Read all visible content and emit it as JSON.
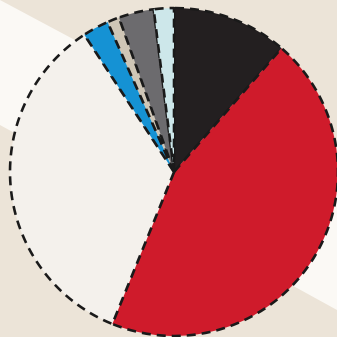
{
  "chart_data": {
    "type": "pie",
    "title": "",
    "start_angle_deg": 0,
    "direction": "clockwise",
    "slice_outline": "dashed",
    "categories": [
      "",
      "",
      "",
      "",
      "",
      "",
      ""
    ],
    "values": [
      11.5,
      45.2,
      35.0,
      2.6,
      1.2,
      3.5,
      2.0
    ],
    "colors": [
      "#231f20",
      "#cf1b2b",
      "#f4f1ec",
      "#1592d4",
      "#cfc6b6",
      "#6c6b6e",
      "#cde7ea"
    ]
  },
  "background": {
    "base_color": "#ece4d8",
    "band_color": "#fbf9f5"
  }
}
